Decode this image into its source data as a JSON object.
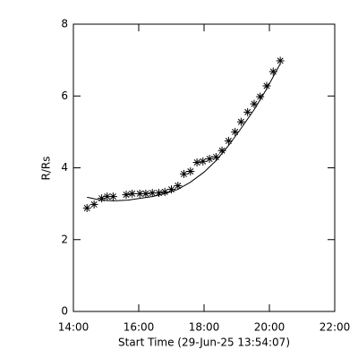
{
  "chart_data": {
    "type": "scatter",
    "xlabel": "Start Time (29-Jun-25 13:54:07)",
    "ylabel": "R/Rs",
    "xlim": [
      "14:00",
      "22:00"
    ],
    "xticks": [
      "14:00",
      "16:00",
      "18:00",
      "20:00",
      "22:00"
    ],
    "ylim": [
      0,
      8
    ],
    "yticks": [
      0,
      2,
      4,
      6,
      8
    ],
    "series": [
      {
        "mode": "markers",
        "color": "#000000",
        "x": [
          "14:25",
          "14:38",
          "14:52",
          "15:02",
          "15:13",
          "15:37",
          "15:48",
          "16:02",
          "16:13",
          "16:25",
          "16:37",
          "16:48",
          "17:00",
          "17:12",
          "17:23",
          "17:35",
          "17:47",
          "17:58",
          "18:10",
          "18:22",
          "18:33",
          "18:45",
          "18:57",
          "19:08",
          "19:20",
          "19:32",
          "19:43",
          "19:55",
          "20:07",
          "20:20"
        ],
        "values": [
          2.88,
          2.98,
          3.15,
          3.2,
          3.2,
          3.25,
          3.28,
          3.28,
          3.28,
          3.3,
          3.3,
          3.33,
          3.4,
          3.5,
          3.83,
          3.9,
          4.15,
          4.18,
          4.25,
          4.3,
          4.48,
          4.75,
          5.0,
          5.28,
          5.55,
          5.78,
          5.98,
          6.28,
          6.68,
          6.98
        ]
      },
      {
        "mode": "line",
        "color": "#000000",
        "x": [
          "14:25",
          "14:50",
          "15:13",
          "15:40",
          "16:02",
          "16:25",
          "16:48",
          "17:12",
          "17:35",
          "18:00",
          "18:22",
          "18:45",
          "19:08",
          "19:32",
          "19:55",
          "20:20"
        ],
        "values": [
          3.18,
          3.1,
          3.08,
          3.1,
          3.15,
          3.2,
          3.28,
          3.4,
          3.6,
          3.88,
          4.2,
          4.62,
          5.1,
          5.62,
          6.2,
          6.9
        ]
      }
    ]
  }
}
